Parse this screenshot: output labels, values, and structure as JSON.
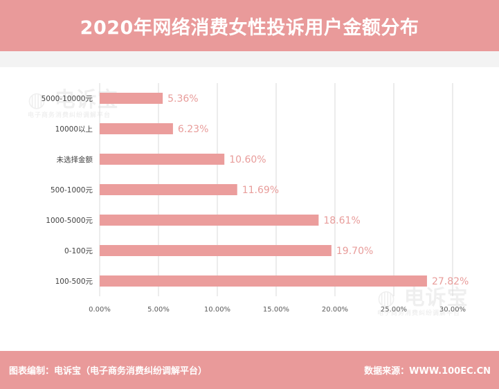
{
  "header": {
    "title": "2020年网络消费女性投诉用户金额分布"
  },
  "watermark": {
    "brand": "电诉宝",
    "tagline": "电子商务消费纠纷调解平台"
  },
  "footer": {
    "left_text": "图表编制：电诉宝（电子商务消费纠纷调解平台）",
    "right_text": "数据来源：WWW.100EC.CN"
  },
  "colors": {
    "bar": "#EB9D9C",
    "label": "#E89C9A",
    "header": "#E99A9A"
  },
  "chart_data": {
    "type": "bar",
    "orientation": "horizontal",
    "categories": [
      "5000-10000元",
      "10000以上",
      "未选择金额",
      "500-1000元",
      "1000-5000元",
      "0-100元",
      "100-500元"
    ],
    "values": [
      5.36,
      6.23,
      10.6,
      11.69,
      18.61,
      19.7,
      27.82
    ],
    "value_labels": [
      "5.36%",
      "6.23%",
      "10.60%",
      "11.69%",
      "18.61%",
      "19.70%",
      "27.82%"
    ],
    "xlim": [
      0,
      30
    ],
    "xticks": [
      0,
      5,
      10,
      15,
      20,
      25,
      30
    ],
    "xtick_labels": [
      "0.00%",
      "5.00%",
      "10.00%",
      "15.00%",
      "20.00%",
      "25.00%",
      "30.00%"
    ],
    "grid": "vertical",
    "legend": "none"
  }
}
